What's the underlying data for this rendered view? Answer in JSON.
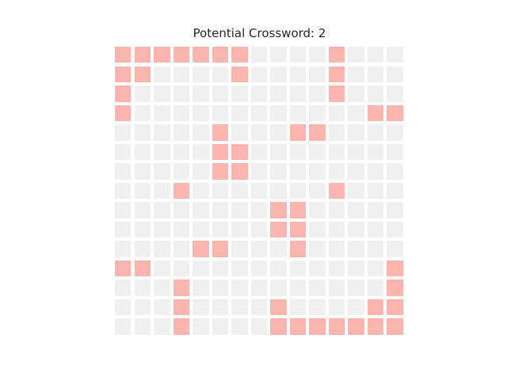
{
  "title": "Potential Crossword: 2",
  "grid": {
    "rows": 15,
    "cols": 15,
    "colors": {
      "empty": "#f0f0f0",
      "filled": "#fbb4ae"
    },
    "cells": [
      [
        1,
        1,
        1,
        1,
        1,
        1,
        1,
        0,
        0,
        0,
        0,
        1,
        0,
        0,
        0
      ],
      [
        1,
        1,
        0,
        0,
        0,
        0,
        1,
        0,
        0,
        0,
        0,
        1,
        0,
        0,
        0
      ],
      [
        1,
        0,
        0,
        0,
        0,
        0,
        0,
        0,
        0,
        0,
        0,
        1,
        0,
        0,
        0
      ],
      [
        1,
        0,
        0,
        0,
        0,
        0,
        0,
        0,
        0,
        0,
        0,
        0,
        0,
        1,
        1
      ],
      [
        0,
        0,
        0,
        0,
        0,
        1,
        0,
        0,
        0,
        1,
        1,
        0,
        0,
        0,
        0
      ],
      [
        0,
        0,
        0,
        0,
        0,
        1,
        1,
        0,
        0,
        0,
        0,
        0,
        0,
        0,
        0
      ],
      [
        0,
        0,
        0,
        0,
        0,
        1,
        1,
        0,
        0,
        0,
        0,
        0,
        0,
        0,
        0
      ],
      [
        0,
        0,
        0,
        1,
        0,
        0,
        0,
        0,
        0,
        0,
        0,
        1,
        0,
        0,
        0
      ],
      [
        0,
        0,
        0,
        0,
        0,
        0,
        0,
        0,
        1,
        1,
        0,
        0,
        0,
        0,
        0
      ],
      [
        0,
        0,
        0,
        0,
        0,
        0,
        0,
        0,
        1,
        1,
        0,
        0,
        0,
        0,
        0
      ],
      [
        0,
        0,
        0,
        0,
        1,
        1,
        0,
        0,
        0,
        1,
        0,
        0,
        0,
        0,
        0
      ],
      [
        1,
        1,
        0,
        0,
        0,
        0,
        0,
        0,
        0,
        0,
        0,
        0,
        0,
        0,
        1
      ],
      [
        0,
        0,
        0,
        1,
        0,
        0,
        0,
        0,
        0,
        0,
        0,
        0,
        0,
        0,
        1
      ],
      [
        0,
        0,
        0,
        1,
        0,
        0,
        0,
        0,
        1,
        0,
        0,
        0,
        0,
        1,
        1
      ],
      [
        0,
        0,
        0,
        1,
        0,
        0,
        0,
        0,
        1,
        1,
        1,
        1,
        1,
        1,
        1
      ]
    ]
  }
}
